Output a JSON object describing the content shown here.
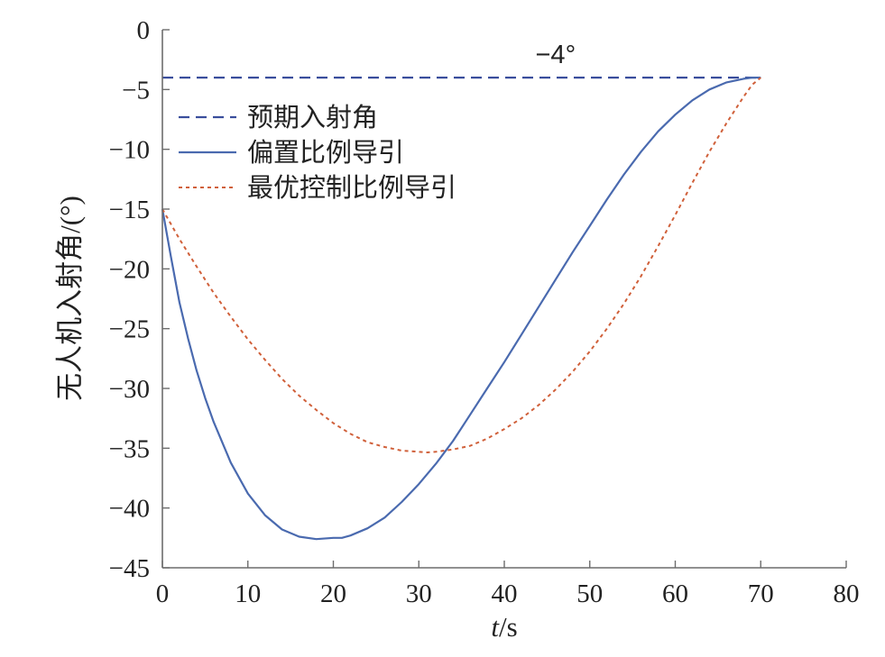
{
  "chart_data": {
    "type": "line",
    "xlabel_italic": "t",
    "xlabel_rest": "/s",
    "ylabel": "无人机入射角/(°)",
    "xlim": [
      0,
      80
    ],
    "ylim": [
      -45,
      0
    ],
    "xticks": [
      0,
      10,
      20,
      30,
      40,
      50,
      60,
      70,
      80
    ],
    "yticks": [
      0,
      -5,
      -10,
      -15,
      -20,
      -25,
      -30,
      -35,
      -40,
      -45
    ],
    "xtick_labels": [
      "0",
      "10",
      "20",
      "30",
      "40",
      "50",
      "60",
      "70",
      "80"
    ],
    "ytick_labels": [
      "0",
      "−5",
      "−10",
      "−15",
      "−20",
      "−25",
      "−30",
      "−35",
      "−40",
      "−45"
    ],
    "grid": false,
    "legend_position": "upper-left",
    "annotation": {
      "text": "−4°",
      "x": 46,
      "y": -4
    },
    "series": [
      {
        "name": "预期入射角",
        "style": "dashed",
        "color": "#3a4e9c",
        "x": [
          0,
          70
        ],
        "y": [
          -4,
          -4
        ]
      },
      {
        "name": "偏置比例导引",
        "style": "solid",
        "color": "#4a6aaf",
        "x": [
          0,
          1,
          2,
          3,
          4,
          5,
          6,
          8,
          10,
          12,
          14,
          16,
          18,
          20,
          21,
          22,
          24,
          26,
          28,
          30,
          32,
          34,
          36,
          38,
          40,
          42,
          44,
          46,
          48,
          50,
          52,
          54,
          56,
          58,
          60,
          62,
          64,
          66,
          68,
          69,
          70
        ],
        "y": [
          -15,
          -19,
          -22.8,
          -25.8,
          -28.5,
          -30.8,
          -32.8,
          -36.2,
          -38.8,
          -40.6,
          -41.8,
          -42.4,
          -42.6,
          -42.5,
          -42.5,
          -42.3,
          -41.7,
          -40.8,
          -39.5,
          -38,
          -36.3,
          -34.4,
          -32.2,
          -30,
          -27.8,
          -25.5,
          -23.2,
          -20.9,
          -18.6,
          -16.4,
          -14.2,
          -12.1,
          -10.2,
          -8.5,
          -7.1,
          -5.9,
          -5,
          -4.4,
          -4.1,
          -4,
          -4
        ]
      },
      {
        "name": "最优控制比例导引",
        "style": "dotted",
        "color": "#d0603a",
        "x": [
          0,
          2,
          4,
          6,
          8,
          10,
          12,
          14,
          16,
          18,
          20,
          22,
          24,
          26,
          28,
          30,
          31,
          32,
          34,
          36,
          38,
          40,
          42,
          44,
          46,
          48,
          50,
          52,
          54,
          56,
          58,
          60,
          62,
          64,
          66,
          68,
          69,
          70
        ],
        "y": [
          -15,
          -17.5,
          -19.8,
          -22,
          -24,
          -25.9,
          -27.6,
          -29.2,
          -30.6,
          -31.8,
          -32.9,
          -33.8,
          -34.5,
          -34.9,
          -35.2,
          -35.3,
          -35.35,
          -35.3,
          -35.1,
          -34.8,
          -34.2,
          -33.4,
          -32.5,
          -31.4,
          -30.1,
          -28.6,
          -26.9,
          -25,
          -22.9,
          -20.6,
          -18.1,
          -15.5,
          -12.8,
          -10.2,
          -7.8,
          -5.6,
          -4.6,
          -4
        ]
      }
    ]
  }
}
